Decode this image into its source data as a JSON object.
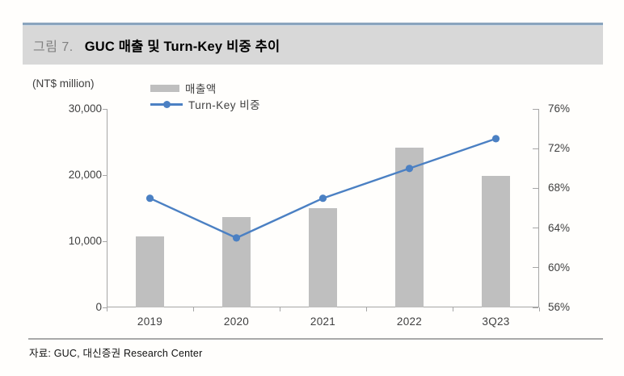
{
  "figure": {
    "label": "그림 7.",
    "title": "GUC 매출 및 Turn-Key 비중 추이"
  },
  "source": {
    "text": "자료: GUC, 대신증권 Research Center"
  },
  "colors": {
    "bar": "#bfbfbf",
    "line": "#4b80c3",
    "axis": "#a6a6a6",
    "title_bar_bg": "#d8d8d8",
    "title_bar_accent": "#8aa4be"
  },
  "chart_data": {
    "type": "combo_bar_line",
    "categories": [
      "2019",
      "2020",
      "2021",
      "2022",
      "3Q23"
    ],
    "series": [
      {
        "name": "매출액",
        "type": "bar",
        "axis": "left",
        "color": "#bfbfbf",
        "values": [
          10700,
          13600,
          15000,
          24100,
          19900
        ]
      },
      {
        "name": "Turn-Key 비중",
        "type": "line",
        "axis": "right",
        "color": "#4b80c3",
        "values": [
          67,
          63,
          67,
          70,
          73
        ]
      }
    ],
    "left_axis": {
      "label": "(NT$ million)",
      "min": 0,
      "max": 30000,
      "step": 10000,
      "tick_labels": [
        "0",
        "10,000",
        "20,000",
        "30,000"
      ]
    },
    "right_axis": {
      "min": 56,
      "max": 76,
      "step": 4,
      "tick_labels": [
        "56%",
        "60%",
        "64%",
        "68%",
        "72%",
        "76%"
      ]
    },
    "legend": [
      {
        "label": "매출액",
        "swatch": "bar"
      },
      {
        "label": "Turn-Key 비중",
        "swatch": "line"
      }
    ],
    "legend_position": "top-left",
    "grid": false
  }
}
